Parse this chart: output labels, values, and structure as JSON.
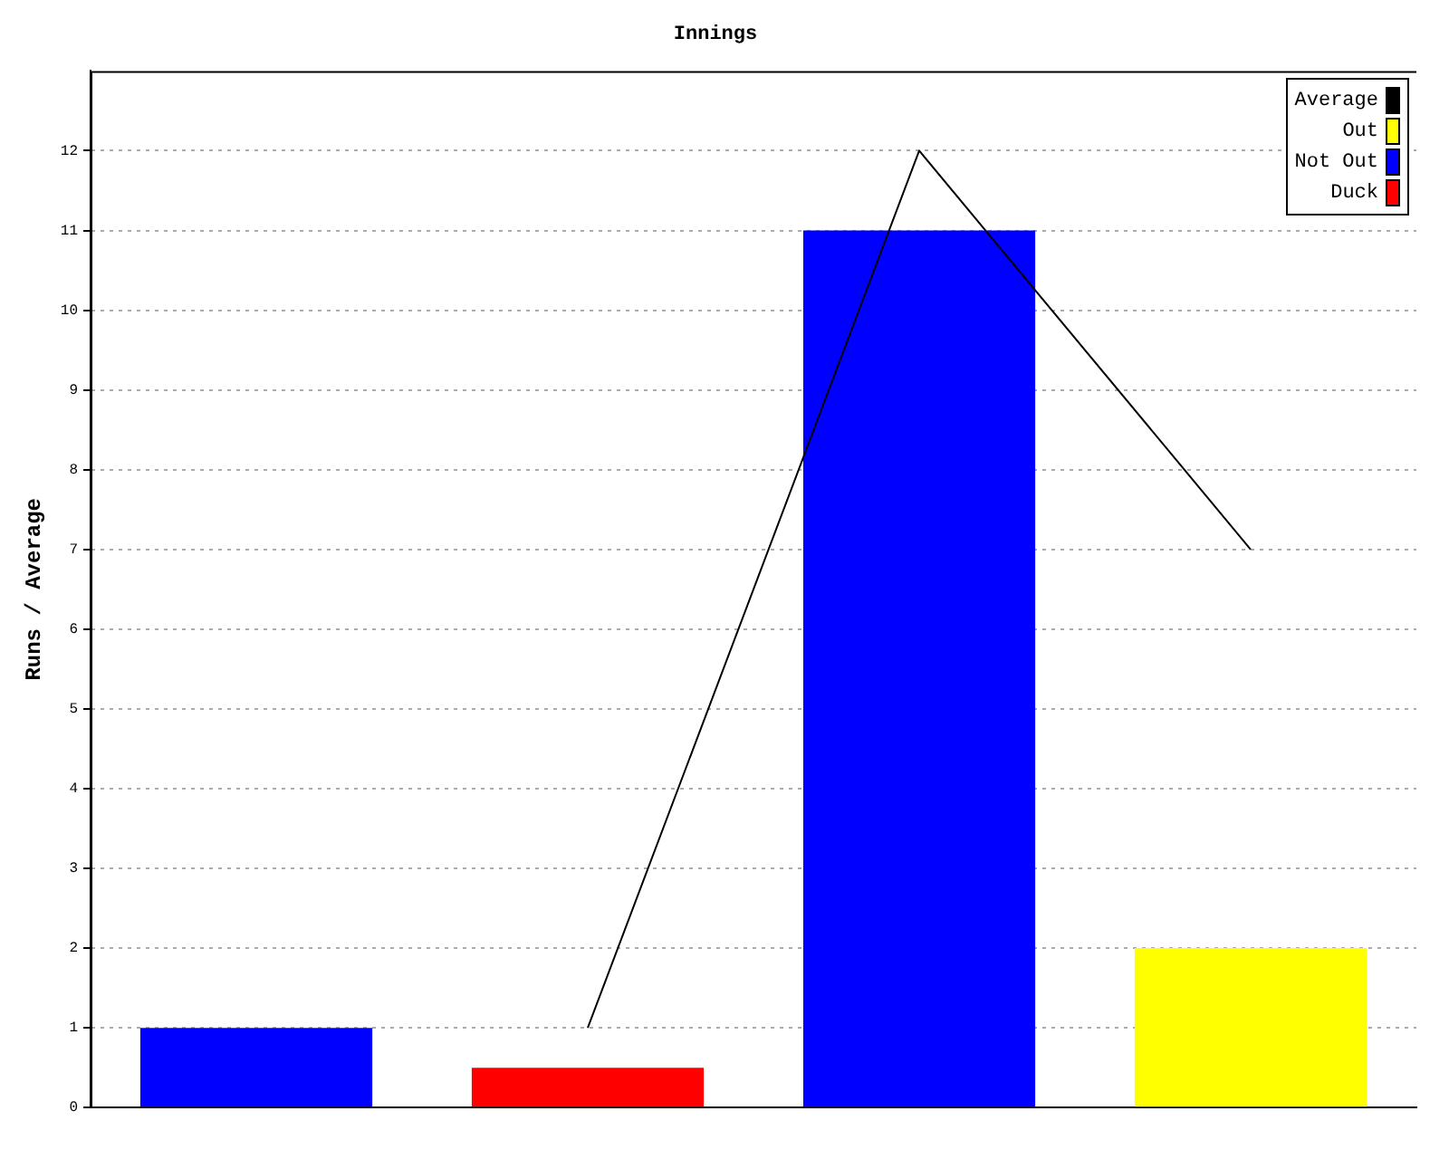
{
  "chart_data": {
    "type": "bar",
    "title": "Innings",
    "ylabel": "Runs / Average",
    "categories": [
      null,
      null,
      null,
      null
    ],
    "series": [
      {
        "name": "Average",
        "type": "line",
        "color": "#000000",
        "values": [
          null,
          1,
          12,
          7
        ]
      },
      {
        "name": "Out",
        "color": "#ffff00",
        "values": [
          null,
          null,
          null,
          2
        ]
      },
      {
        "name": "Not Out",
        "color": "#0000ff",
        "values": [
          1,
          null,
          11,
          null
        ]
      },
      {
        "name": "Duck",
        "color": "#ff0000",
        "values": [
          null,
          0.5,
          null,
          null
        ]
      }
    ],
    "ylim": [
      0,
      13
    ],
    "yticks": [
      0,
      1,
      2,
      3,
      4,
      5,
      6,
      7,
      8,
      9,
      10,
      11,
      12
    ],
    "grid": "y",
    "legend": "top right",
    "marker": "none"
  }
}
